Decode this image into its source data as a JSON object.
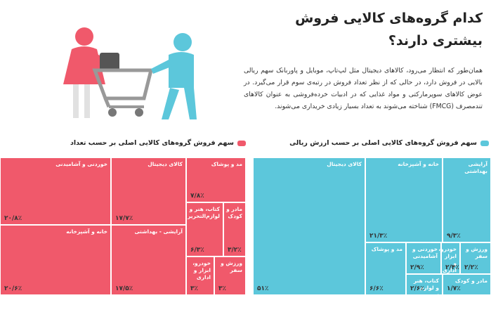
{
  "header": {
    "title": "کدام گروه‌های کالایی فروش بیشتری دارند؟",
    "text": "همان‌طور که انتظار می‌رود، کالاهای دیجیتال مثل لپ‌تاپ، موبایل و پاوربانک سهم ریالی بالایی در فروش دارد، در حالی که از نظر تعداد فروش در رتبه‌ی سوم قرار می‌گیرد. در عوض کالاهای سوپرمارکتی و مواد غذایی که در ادبیات خرده‌فروشی به عنوان کالاهای تندمصرف (FMCG) شناخته می‌شوند به تعداد بسیار زیادی خریداری می‌شوند."
  },
  "chart_data": [
    {
      "type": "treemap",
      "title": "سهم فروش گروه‌های کالایی اصلی بر حسب تعداد",
      "color": "#f0596b",
      "categories": [
        "خوردنی و آشامیدنی",
        "کالای دیجیتال",
        "مد و پوشاک",
        "کتاب، هنر و لوازم‌التحریر",
        "مادر و کودک",
        "خانه و آشپزخانه",
        "آرایشی - بهداشتی",
        "خودرو، ابزار و اداری",
        "ورزش و سفر"
      ],
      "values": [
        20.8,
        17.7,
        7.8,
        6.3,
        3.2,
        20.6,
        17.5,
        3,
        3
      ],
      "value_labels": [
        "۲۰/۸٪",
        "۱۷/۷٪",
        "۷/۸٪",
        "۶/۳٪",
        "۳/۲٪",
        "۲۰/۶٪",
        "۱۷/۵٪",
        "۳٪",
        "۳٪"
      ]
    },
    {
      "type": "treemap",
      "title": "سهم فروش گروه‌های کالایی اصلی بر حسب ارزش ریالی",
      "color": "#5cc7db",
      "categories": [
        "کالای دیجیتال",
        "خانه و آشپزخانه",
        "آرایشی بهداشتی",
        "مد و پوشاک",
        "خوردنی و آشامیدنی",
        "خودرو، ابزار و اداری",
        "ورزش و سفر",
        "کتاب، هنر و لوازم تحریر",
        "مادر و کودک"
      ],
      "values": [
        51,
        21.3,
        9.3,
        6.6,
        2.9,
        2.4,
        2.2,
        2.6,
        1.7
      ],
      "value_labels": [
        "۵۱٪",
        "۲۱/۳٪",
        "۹/۳٪",
        "۶/۶٪",
        "۲/۹٪",
        "۲/۴٪",
        "۲/۲٪",
        "۲/۶٪",
        "۱/۷٪"
      ]
    }
  ]
}
